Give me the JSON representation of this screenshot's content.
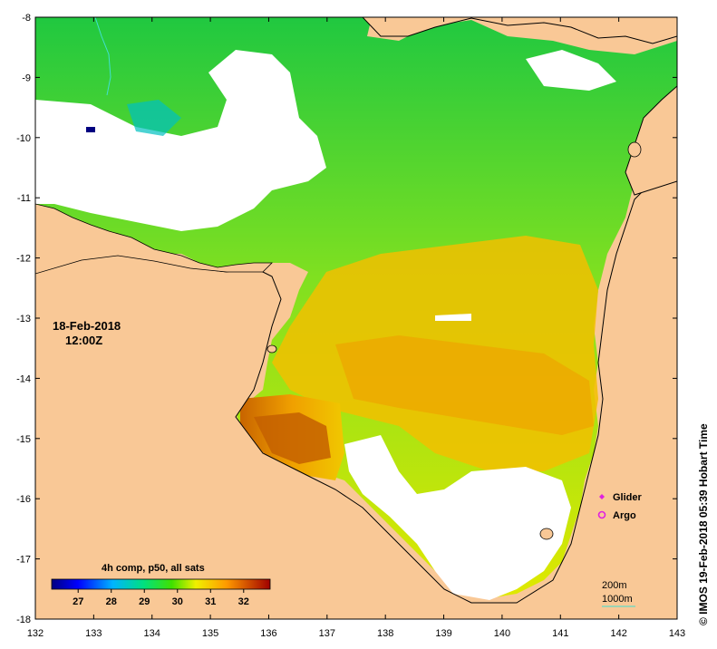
{
  "map": {
    "x_ticks": [
      "132",
      "133",
      "134",
      "135",
      "136",
      "137",
      "138",
      "139",
      "140",
      "141",
      "142",
      "143"
    ],
    "y_ticks": [
      "-8",
      "-9",
      "-10",
      "-11",
      "-12",
      "-13",
      "-14",
      "-15",
      "-16",
      "-17",
      "-18"
    ],
    "date": "18-Feb-2018",
    "time": "12:00Z",
    "colorbar": {
      "title": "4h comp, p50, all sats",
      "ticks": [
        "27",
        "28",
        "29",
        "30",
        "31",
        "32"
      ],
      "min": 26.2,
      "max": 32.8
    },
    "legend": [
      {
        "label": "Glider",
        "marker": "diamond",
        "color": "#e020e0"
      },
      {
        "label": "Argo",
        "marker": "circle",
        "color": "#e020e0"
      }
    ],
    "depth_contours": [
      "200m",
      "1000m"
    ],
    "credit": "© IMOS 19-Feb-2018 05:39 Hobart Time",
    "colors": {
      "land": "#f9c896",
      "no_data": "#ffffff",
      "contour_1000m": "#40e0d0"
    }
  }
}
